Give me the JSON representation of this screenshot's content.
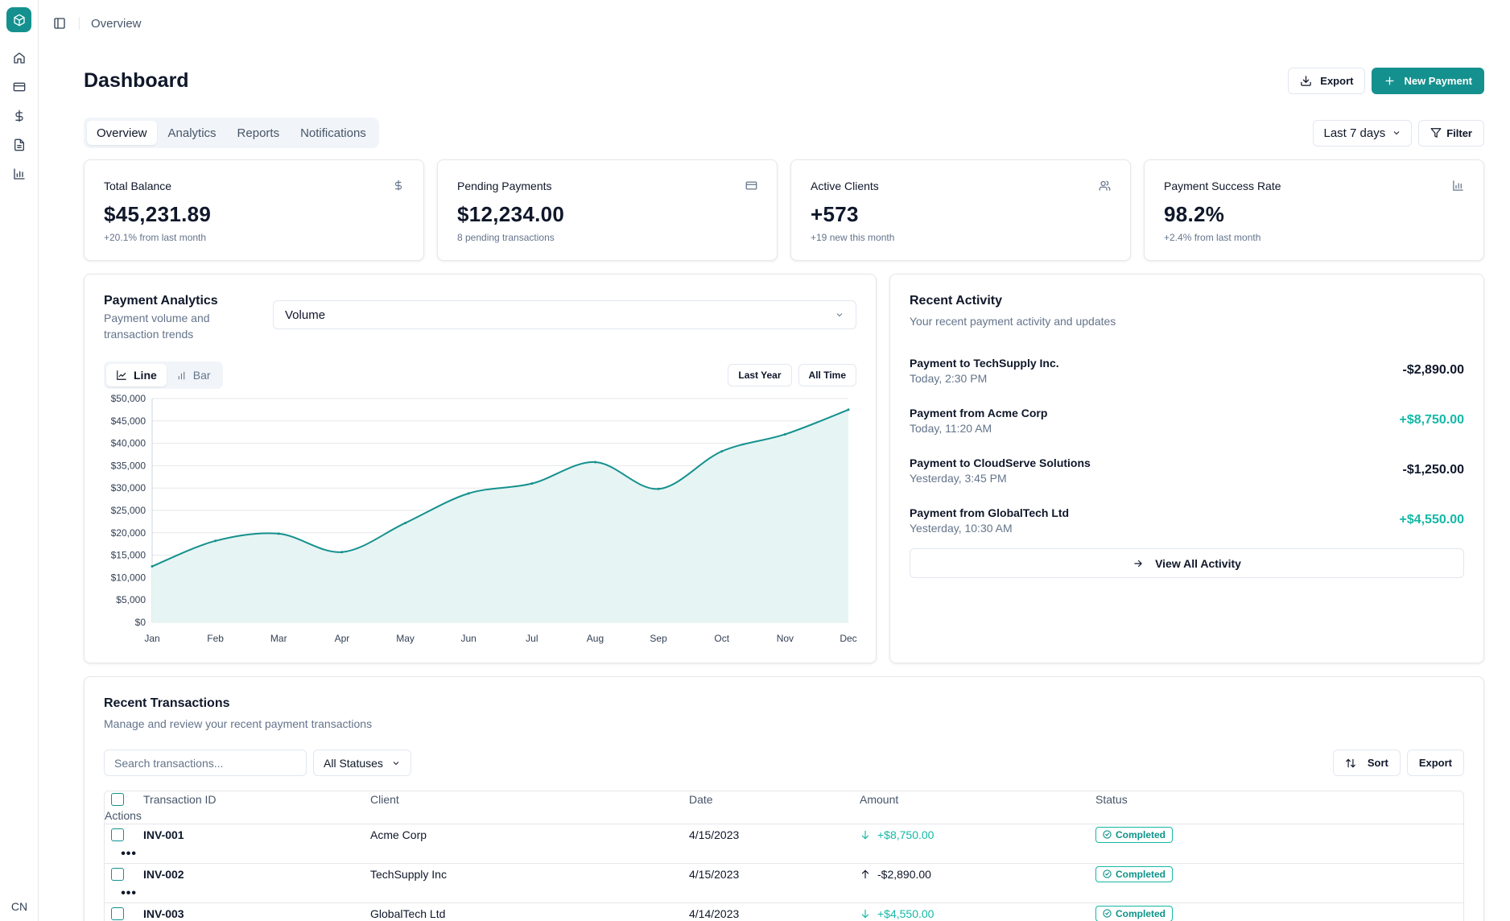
{
  "sidebar": {
    "logo_icon": "cube-icon",
    "items": [
      "home-icon",
      "card-icon",
      "dollar-icon",
      "file-icon",
      "chart-icon"
    ],
    "bottom_label": "CN"
  },
  "topbar": {
    "breadcrumb": "Overview"
  },
  "header": {
    "title": "Dashboard",
    "export_label": "Export",
    "new_payment_label": "New Payment"
  },
  "tabs": {
    "items": [
      "Overview",
      "Analytics",
      "Reports",
      "Notifications"
    ],
    "active": "Overview",
    "range_label": "Last 7 days",
    "filter_label": "Filter"
  },
  "stats": [
    {
      "label": "Total Balance",
      "value": "$45,231.89",
      "sub": "+20.1% from last month",
      "icon": "dollar-icon"
    },
    {
      "label": "Pending Payments",
      "value": "$12,234.00",
      "sub": "8 pending transactions",
      "icon": "card-icon"
    },
    {
      "label": "Active Clients",
      "value": "+573",
      "sub": "+19 new this month",
      "icon": "users-icon"
    },
    {
      "label": "Payment Success Rate",
      "value": "98.2%",
      "sub": "+2.4% from last month",
      "icon": "bar-chart-icon"
    }
  ],
  "analytics": {
    "title": "Payment Analytics",
    "desc_line1": "Payment volume and",
    "desc_line2": "transaction trends",
    "metric": "Volume",
    "line_label": "Line",
    "bar_label": "Bar",
    "last_year_label": "Last Year",
    "all_time_label": "All Time"
  },
  "chart_data": {
    "type": "area",
    "categories": [
      "Jan",
      "Feb",
      "Mar",
      "Apr",
      "May",
      "Jun",
      "Jul",
      "Aug",
      "Sep",
      "Oct",
      "Nov",
      "Dec"
    ],
    "values": [
      12500,
      18200,
      19800,
      15700,
      22200,
      28800,
      31000,
      35800,
      29800,
      38200,
      42000,
      47500
    ],
    "ylim": [
      0,
      50000
    ],
    "yticks": [
      "$0",
      "$5,000",
      "$10,000",
      "$15,000",
      "$20,000",
      "$25,000",
      "$30,000",
      "$35,000",
      "$40,000",
      "$45,000",
      "$50,000"
    ],
    "grid": true,
    "color": "#14918e",
    "fill": "#e6f4f3"
  },
  "activity": {
    "title": "Recent Activity",
    "desc": "Your recent payment activity and updates",
    "items": [
      {
        "name": "Payment to TechSupply Inc.",
        "time": "Today, 2:30 PM",
        "amount": "-$2,890.00",
        "sign": "neg"
      },
      {
        "name": "Payment from Acme Corp",
        "time": "Today, 11:20 AM",
        "amount": "+$8,750.00",
        "sign": "pos"
      },
      {
        "name": "Payment to CloudServe Solutions",
        "time": "Yesterday, 3:45 PM",
        "amount": "-$1,250.00",
        "sign": "neg"
      },
      {
        "name": "Payment from GlobalTech Ltd",
        "time": "Yesterday, 10:30 AM",
        "amount": "+$4,550.00",
        "sign": "pos"
      }
    ],
    "view_all_label": "View All Activity"
  },
  "transactions": {
    "title": "Recent Transactions",
    "desc": "Manage and review your recent payment transactions",
    "search_placeholder": "Search transactions...",
    "status_filter": "All Statuses",
    "sort_label": "Sort",
    "export_label": "Export",
    "columns": [
      "Transaction ID",
      "Client",
      "Date",
      "Amount",
      "Status",
      "Actions"
    ],
    "rows": [
      {
        "id": "INV-001",
        "client": "Acme Corp",
        "date": "4/15/2023",
        "amount": "+$8,750.00",
        "direction": "in",
        "status": "Completed"
      },
      {
        "id": "INV-002",
        "client": "TechSupply Inc",
        "date": "4/15/2023",
        "amount": "-$2,890.00",
        "direction": "out",
        "status": "Completed"
      },
      {
        "id": "INV-003",
        "client": "GlobalTech Ltd",
        "date": "4/14/2023",
        "amount": "+$4,550.00",
        "direction": "in",
        "status": "Completed"
      }
    ],
    "row_action_glyph": "•••"
  }
}
